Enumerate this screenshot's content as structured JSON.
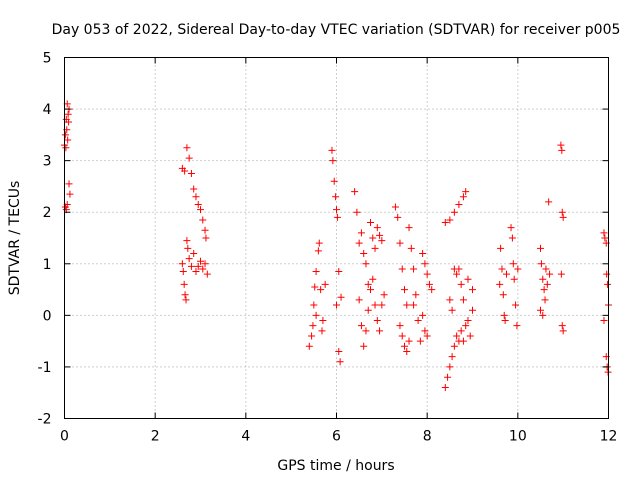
{
  "chart_data": {
    "type": "scatter",
    "title": "Day 053 of 2022, Sidereal Day-to-day VTEC variation (SDTVAR) for receiver p005",
    "xlabel": "GPS time / hours",
    "ylabel": "SDTVAR / TECUs",
    "xlim": [
      0,
      12
    ],
    "ylim": [
      -2,
      5
    ],
    "x_ticks": [
      0,
      2,
      4,
      6,
      8,
      10,
      12
    ],
    "x_tick_labels": [
      "0",
      "2",
      "4",
      "6",
      "8",
      "10",
      "12"
    ],
    "y_ticks": [
      -2,
      -1,
      0,
      1,
      2,
      3,
      4,
      5
    ],
    "y_tick_labels": [
      "-2",
      "-1",
      "0",
      "1",
      "2",
      "3",
      "4",
      "5"
    ],
    "grid": true,
    "marker": "plus",
    "series": [
      {
        "name": "p005",
        "color": "#ff0000",
        "points": [
          [
            0.0,
            3.3
          ],
          [
            0.02,
            3.5
          ],
          [
            0.04,
            3.8
          ],
          [
            0.06,
            4.1
          ],
          [
            0.08,
            3.9
          ],
          [
            0.1,
            4.0
          ],
          [
            0.03,
            3.25
          ],
          [
            0.05,
            3.6
          ],
          [
            0.07,
            3.4
          ],
          [
            0.02,
            2.1
          ],
          [
            0.04,
            2.05
          ],
          [
            0.06,
            2.15
          ],
          [
            0.1,
            2.55
          ],
          [
            0.12,
            2.35
          ],
          [
            0.09,
            3.75
          ],
          [
            2.6,
            2.85
          ],
          [
            2.65,
            2.8
          ],
          [
            2.7,
            3.25
          ],
          [
            2.75,
            3.05
          ],
          [
            2.8,
            2.75
          ],
          [
            2.85,
            2.45
          ],
          [
            2.9,
            2.3
          ],
          [
            2.95,
            2.15
          ],
          [
            3.0,
            2.05
          ],
          [
            3.05,
            1.85
          ],
          [
            3.1,
            1.65
          ],
          [
            3.12,
            1.5
          ],
          [
            2.6,
            1.0
          ],
          [
            2.62,
            0.85
          ],
          [
            2.64,
            0.6
          ],
          [
            2.66,
            0.4
          ],
          [
            2.68,
            0.3
          ],
          [
            2.7,
            1.45
          ],
          [
            2.72,
            1.3
          ],
          [
            2.75,
            1.1
          ],
          [
            2.8,
            0.95
          ],
          [
            2.85,
            1.2
          ],
          [
            2.9,
            0.85
          ],
          [
            2.95,
            0.95
          ],
          [
            3.0,
            1.05
          ],
          [
            3.05,
            0.9
          ],
          [
            3.1,
            1.0
          ],
          [
            3.15,
            0.8
          ],
          [
            5.4,
            -0.6
          ],
          [
            5.45,
            -0.4
          ],
          [
            5.5,
            0.2
          ],
          [
            5.52,
            0.55
          ],
          [
            5.55,
            0.85
          ],
          [
            5.6,
            1.25
          ],
          [
            5.62,
            1.4
          ],
          [
            5.65,
            0.5
          ],
          [
            5.68,
            -0.3
          ],
          [
            5.7,
            -0.1
          ],
          [
            5.75,
            0.6
          ],
          [
            5.55,
            0.0
          ],
          [
            5.48,
            -0.2
          ],
          [
            5.9,
            3.2
          ],
          [
            5.92,
            3.0
          ],
          [
            5.95,
            2.6
          ],
          [
            5.98,
            2.3
          ],
          [
            6.0,
            2.05
          ],
          [
            6.02,
            1.9
          ],
          [
            6.05,
            0.85
          ],
          [
            6.0,
            0.2
          ],
          [
            6.05,
            -0.7
          ],
          [
            6.08,
            -0.9
          ],
          [
            6.1,
            0.35
          ],
          [
            6.4,
            2.4
          ],
          [
            6.45,
            2.0
          ],
          [
            6.5,
            1.4
          ],
          [
            6.55,
            1.6
          ],
          [
            6.6,
            1.2
          ],
          [
            6.65,
            1.0
          ],
          [
            6.7,
            0.6
          ],
          [
            6.75,
            1.8
          ],
          [
            6.8,
            1.5
          ],
          [
            6.85,
            1.3
          ],
          [
            6.9,
            1.7
          ],
          [
            6.95,
            1.55
          ],
          [
            7.0,
            1.45
          ],
          [
            6.5,
            0.3
          ],
          [
            6.55,
            -0.2
          ],
          [
            6.6,
            -0.6
          ],
          [
            6.65,
            -0.3
          ],
          [
            6.7,
            0.1
          ],
          [
            6.75,
            0.5
          ],
          [
            6.8,
            0.7
          ],
          [
            6.85,
            0.2
          ],
          [
            6.9,
            -0.1
          ],
          [
            6.95,
            -0.3
          ],
          [
            7.0,
            0.2
          ],
          [
            7.05,
            0.4
          ],
          [
            7.3,
            2.1
          ],
          [
            7.35,
            1.9
          ],
          [
            7.4,
            1.4
          ],
          [
            7.45,
            0.9
          ],
          [
            7.5,
            0.5
          ],
          [
            7.55,
            0.2
          ],
          [
            7.6,
            1.7
          ],
          [
            7.65,
            1.3
          ],
          [
            7.7,
            0.9
          ],
          [
            7.75,
            0.4
          ],
          [
            7.8,
            -0.1
          ],
          [
            7.85,
            -0.5
          ],
          [
            7.9,
            0.0
          ],
          [
            7.95,
            -0.3
          ],
          [
            8.0,
            -0.4
          ],
          [
            8.05,
            0.6
          ],
          [
            8.1,
            0.5
          ],
          [
            7.4,
            -0.2
          ],
          [
            7.45,
            -0.4
          ],
          [
            7.5,
            -0.6
          ],
          [
            7.55,
            -0.7
          ],
          [
            7.6,
            -0.5
          ],
          [
            7.7,
            0.2
          ],
          [
            7.9,
            1.2
          ],
          [
            7.95,
            1.0
          ],
          [
            8.0,
            0.8
          ],
          [
            8.4,
            1.8
          ],
          [
            8.5,
            1.85
          ],
          [
            8.6,
            2.0
          ],
          [
            8.7,
            2.15
          ],
          [
            8.8,
            2.3
          ],
          [
            8.85,
            2.4
          ],
          [
            8.4,
            -1.4
          ],
          [
            8.45,
            -1.2
          ],
          [
            8.5,
            -1.0
          ],
          [
            8.55,
            -0.8
          ],
          [
            8.6,
            -0.6
          ],
          [
            8.65,
            -0.4
          ],
          [
            8.7,
            -0.5
          ],
          [
            8.75,
            -0.3
          ],
          [
            8.8,
            -0.5
          ],
          [
            8.85,
            -0.2
          ],
          [
            8.9,
            -0.1
          ],
          [
            8.95,
            -0.4
          ],
          [
            9.0,
            0.1
          ],
          [
            8.5,
            0.3
          ],
          [
            8.55,
            0.1
          ],
          [
            8.6,
            0.9
          ],
          [
            8.65,
            0.8
          ],
          [
            8.7,
            0.9
          ],
          [
            8.75,
            0.6
          ],
          [
            8.8,
            0.3
          ],
          [
            8.9,
            0.7
          ],
          [
            9.0,
            0.5
          ],
          [
            9.6,
            0.6
          ],
          [
            9.62,
            1.3
          ],
          [
            9.65,
            0.9
          ],
          [
            9.68,
            0.4
          ],
          [
            9.7,
            0.0
          ],
          [
            9.72,
            -0.1
          ],
          [
            9.75,
            0.8
          ],
          [
            9.85,
            1.7
          ],
          [
            9.88,
            1.5
          ],
          [
            9.9,
            1.0
          ],
          [
            9.92,
            0.7
          ],
          [
            9.95,
            0.2
          ],
          [
            9.98,
            -0.2
          ],
          [
            10.0,
            0.9
          ],
          [
            10.5,
            1.3
          ],
          [
            10.52,
            1.0
          ],
          [
            10.55,
            0.7
          ],
          [
            10.58,
            0.5
          ],
          [
            10.6,
            0.3
          ],
          [
            10.62,
            0.9
          ],
          [
            10.65,
            0.6
          ],
          [
            10.7,
            0.8
          ],
          [
            10.5,
            0.1
          ],
          [
            10.55,
            0.0
          ],
          [
            10.68,
            2.2
          ],
          [
            10.95,
            3.3
          ],
          [
            10.97,
            3.2
          ],
          [
            10.98,
            2.0
          ],
          [
            11.0,
            1.9
          ],
          [
            10.96,
            0.8
          ],
          [
            10.98,
            -0.2
          ],
          [
            11.0,
            -0.3
          ],
          [
            11.9,
            1.6
          ],
          [
            11.92,
            1.5
          ],
          [
            11.95,
            1.4
          ],
          [
            11.96,
            0.8
          ],
          [
            11.98,
            0.6
          ],
          [
            12.0,
            0.2
          ],
          [
            11.9,
            -0.1
          ],
          [
            11.95,
            -0.8
          ],
          [
            11.97,
            -1.0
          ],
          [
            11.99,
            -1.1
          ]
        ]
      }
    ]
  }
}
